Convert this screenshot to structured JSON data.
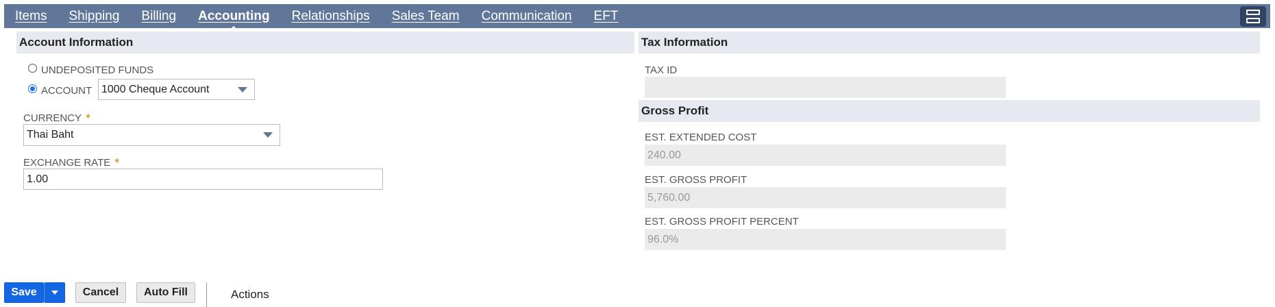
{
  "tabs": [
    {
      "label": "Items"
    },
    {
      "label": "Shipping"
    },
    {
      "label": "Billing"
    },
    {
      "label": "Accounting",
      "active": true
    },
    {
      "label": "Relationships"
    },
    {
      "label": "Sales Team"
    },
    {
      "label": "Communication"
    },
    {
      "label": "EFT"
    }
  ],
  "account_info": {
    "header": "Account Information",
    "undeposited_label": "UNDEPOSITED FUNDS",
    "account_label": "ACCOUNT",
    "account_value": "1000 Cheque Account",
    "currency_label": "CURRENCY",
    "currency_value": "Thai Baht",
    "exchange_rate_label": "EXCHANGE RATE",
    "exchange_rate_value": "1.00",
    "required_mark": "*"
  },
  "tax_info": {
    "header": "Tax Information",
    "tax_id_label": "TAX ID",
    "tax_id_value": ""
  },
  "gross_profit": {
    "header": "Gross Profit",
    "ext_cost_label": "EST. EXTENDED COST",
    "ext_cost_value": "240.00",
    "gross_profit_label": "EST. GROSS PROFIT",
    "gross_profit_value": "5,760.00",
    "gross_profit_pct_label": "EST. GROSS PROFIT PERCENT",
    "gross_profit_pct_value": "96.0%"
  },
  "actions": {
    "save": "Save",
    "cancel": "Cancel",
    "auto_fill": "Auto Fill",
    "actions": "Actions"
  }
}
